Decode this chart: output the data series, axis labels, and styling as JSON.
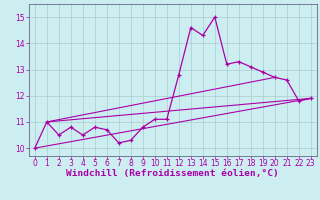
{
  "bg_color": "#cceef0",
  "line_color": "#aa00aa",
  "grid_color": "#aacccc",
  "axis_color": "#666688",
  "xlabel": "Windchill (Refroidissement éolien,°C)",
  "ylim": [
    9.7,
    15.5
  ],
  "xlim": [
    -0.5,
    23.5
  ],
  "yticks": [
    10,
    11,
    12,
    13,
    14,
    15
  ],
  "xticks": [
    0,
    1,
    2,
    3,
    4,
    5,
    6,
    7,
    8,
    9,
    10,
    11,
    12,
    13,
    14,
    15,
    16,
    17,
    18,
    19,
    20,
    21,
    22,
    23
  ],
  "series1": {
    "x": [
      0,
      1,
      2,
      3,
      4,
      5,
      6,
      7,
      8,
      9,
      10,
      11,
      12,
      13,
      14,
      15,
      16,
      17,
      18,
      19,
      20,
      21,
      22,
      23
    ],
    "y": [
      10.0,
      11.0,
      10.5,
      10.8,
      10.5,
      10.8,
      10.7,
      10.2,
      10.3,
      10.8,
      11.1,
      11.1,
      12.8,
      14.6,
      14.3,
      15.0,
      13.2,
      13.3,
      13.1,
      12.9,
      12.7,
      12.6,
      11.8,
      11.9
    ]
  },
  "series2": {
    "x": [
      0,
      23
    ],
    "y": [
      10.0,
      11.9
    ]
  },
  "series3": {
    "x": [
      1,
      23
    ],
    "y": [
      11.0,
      11.9
    ]
  },
  "series4": {
    "x": [
      1,
      20
    ],
    "y": [
      11.0,
      12.7
    ]
  },
  "tick_fontsize": 5.5,
  "xlabel_fontsize": 6.8,
  "xlabel_fontweight": "bold"
}
